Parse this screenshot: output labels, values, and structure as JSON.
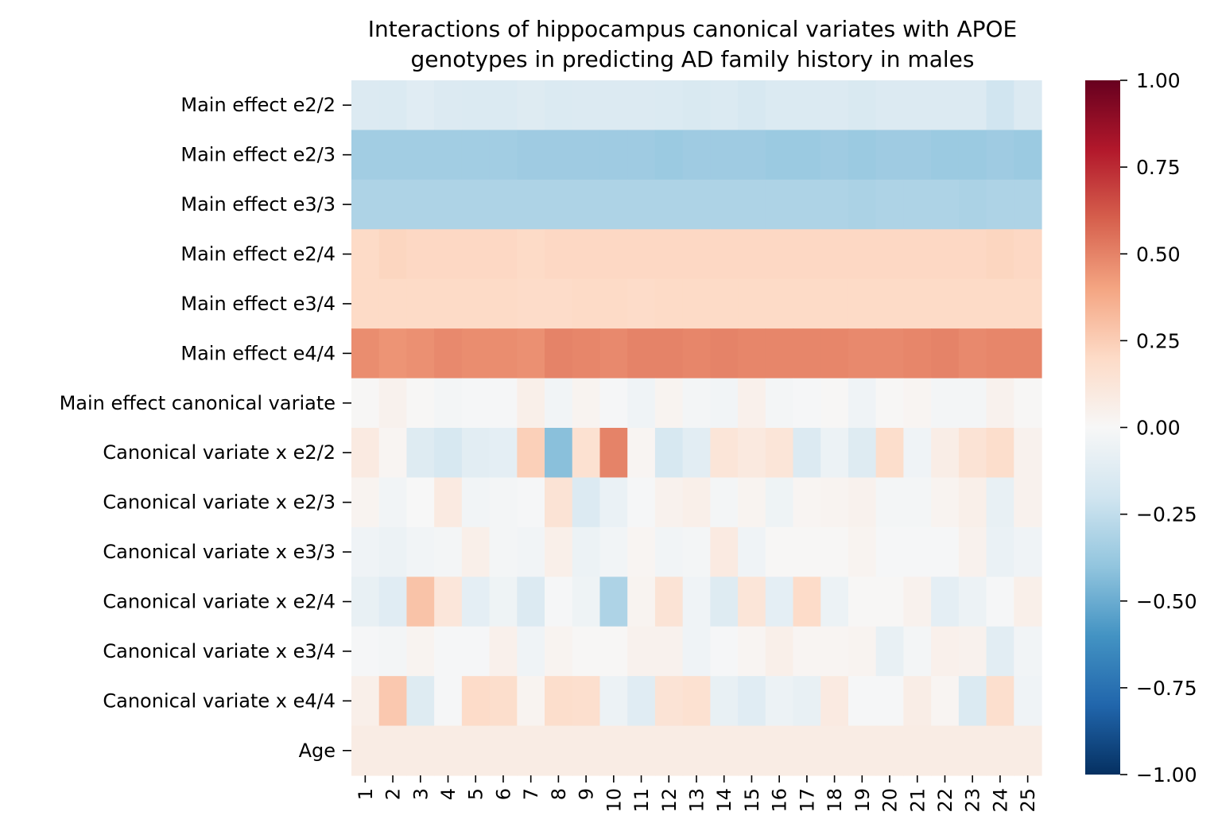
{
  "chart_data": {
    "type": "heatmap",
    "title": "Interactions of hippocampus canonical variates with APOE\ngenotypes in predicting AD family history in males",
    "xlabel": "",
    "ylabel": "",
    "x_categories": [
      "1",
      "2",
      "3",
      "4",
      "5",
      "6",
      "7",
      "8",
      "9",
      "10",
      "11",
      "12",
      "13",
      "14",
      "15",
      "16",
      "17",
      "18",
      "19",
      "20",
      "21",
      "22",
      "23",
      "24",
      "25"
    ],
    "y_categories": [
      "Main effect e2/2",
      "Main effect e2/3",
      "Main effect e3/3",
      "Main effect e2/4",
      "Main effect e3/4",
      "Main effect e4/4",
      "Main effect canonical variate",
      "Canonical variate x e2/2",
      "Canonical variate x e2/3",
      "Canonical variate x e3/3",
      "Canonical variate x e2/4",
      "Canonical variate x e3/4",
      "Canonical variate x e4/4",
      "Age"
    ],
    "values": [
      [
        -0.14,
        -0.15,
        -0.12,
        -0.14,
        -0.15,
        -0.15,
        -0.13,
        -0.15,
        -0.14,
        -0.14,
        -0.14,
        -0.15,
        -0.16,
        -0.15,
        -0.17,
        -0.15,
        -0.15,
        -0.14,
        -0.16,
        -0.14,
        -0.14,
        -0.14,
        -0.14,
        -0.2,
        -0.14
      ],
      [
        -0.35,
        -0.35,
        -0.35,
        -0.35,
        -0.35,
        -0.35,
        -0.36,
        -0.36,
        -0.36,
        -0.36,
        -0.36,
        -0.37,
        -0.36,
        -0.36,
        -0.36,
        -0.37,
        -0.37,
        -0.36,
        -0.37,
        -0.36,
        -0.36,
        -0.37,
        -0.37,
        -0.36,
        -0.37
      ],
      [
        -0.31,
        -0.31,
        -0.31,
        -0.31,
        -0.31,
        -0.31,
        -0.31,
        -0.31,
        -0.31,
        -0.31,
        -0.31,
        -0.31,
        -0.31,
        -0.31,
        -0.31,
        -0.31,
        -0.31,
        -0.31,
        -0.32,
        -0.31,
        -0.31,
        -0.31,
        -0.32,
        -0.31,
        -0.31
      ],
      [
        0.2,
        0.22,
        0.21,
        0.21,
        0.21,
        0.21,
        0.2,
        0.21,
        0.21,
        0.21,
        0.21,
        0.21,
        0.21,
        0.21,
        0.21,
        0.21,
        0.21,
        0.21,
        0.21,
        0.21,
        0.21,
        0.21,
        0.21,
        0.22,
        0.21
      ],
      [
        0.2,
        0.2,
        0.2,
        0.2,
        0.2,
        0.2,
        0.19,
        0.19,
        0.2,
        0.2,
        0.19,
        0.2,
        0.2,
        0.2,
        0.2,
        0.2,
        0.2,
        0.2,
        0.2,
        0.2,
        0.2,
        0.2,
        0.2,
        0.2,
        0.2
      ],
      [
        0.47,
        0.45,
        0.46,
        0.48,
        0.47,
        0.47,
        0.46,
        0.5,
        0.49,
        0.48,
        0.5,
        0.5,
        0.49,
        0.5,
        0.49,
        0.49,
        0.49,
        0.49,
        0.48,
        0.48,
        0.49,
        0.5,
        0.48,
        0.49,
        0.49
      ],
      [
        0.01,
        0.04,
        0.01,
        -0.02,
        -0.01,
        -0.01,
        0.06,
        -0.03,
        0.03,
        -0.01,
        -0.04,
        0.03,
        -0.02,
        -0.03,
        0.05,
        -0.02,
        -0.01,
        0.01,
        -0.04,
        0.01,
        0.02,
        -0.02,
        -0.02,
        0.04,
        0.01
      ],
      [
        0.09,
        0.02,
        -0.13,
        -0.17,
        -0.11,
        -0.1,
        0.24,
        -0.42,
        0.16,
        0.5,
        0.02,
        -0.17,
        -0.11,
        0.13,
        0.1,
        0.13,
        -0.14,
        -0.06,
        -0.13,
        0.18,
        -0.04,
        0.07,
        0.14,
        0.18,
        0.04
      ],
      [
        0.03,
        -0.03,
        0.0,
        0.09,
        -0.03,
        -0.02,
        -0.01,
        0.14,
        -0.14,
        -0.07,
        -0.01,
        0.04,
        0.06,
        -0.02,
        0.03,
        -0.05,
        0.02,
        0.03,
        0.04,
        -0.02,
        -0.02,
        0.03,
        0.06,
        -0.08,
        0.04
      ],
      [
        -0.04,
        -0.06,
        -0.03,
        -0.02,
        0.06,
        -0.02,
        -0.03,
        0.06,
        -0.06,
        -0.03,
        0.02,
        -0.03,
        -0.02,
        0.09,
        -0.04,
        0.01,
        0.01,
        0.01,
        0.03,
        -0.01,
        -0.01,
        -0.01,
        0.04,
        -0.07,
        -0.04
      ],
      [
        -0.08,
        -0.12,
        0.29,
        0.12,
        -0.1,
        -0.05,
        -0.14,
        -0.01,
        -0.05,
        -0.31,
        0.03,
        0.14,
        -0.04,
        -0.13,
        0.13,
        -0.1,
        0.19,
        -0.06,
        0.01,
        0.01,
        0.04,
        -0.1,
        -0.06,
        -0.01,
        0.06
      ],
      [
        -0.01,
        -0.02,
        0.03,
        -0.01,
        -0.01,
        0.05,
        -0.04,
        0.03,
        0.01,
        0.01,
        0.04,
        0.04,
        -0.04,
        -0.01,
        0.02,
        0.06,
        0.02,
        0.02,
        0.03,
        -0.08,
        -0.02,
        0.05,
        0.04,
        -0.11,
        -0.03
      ],
      [
        0.06,
        0.27,
        -0.13,
        -0.01,
        0.19,
        0.18,
        0.03,
        0.18,
        0.17,
        -0.06,
        -0.12,
        0.14,
        0.16,
        -0.08,
        -0.12,
        -0.06,
        -0.08,
        0.09,
        -0.01,
        -0.01,
        0.07,
        0.02,
        -0.15,
        0.17,
        -0.04
      ],
      [
        0.08,
        0.08,
        0.08,
        0.08,
        0.08,
        0.08,
        0.08,
        0.08,
        0.08,
        0.08,
        0.08,
        0.08,
        0.08,
        0.08,
        0.08,
        0.08,
        0.08,
        0.08,
        0.08,
        0.08,
        0.08,
        0.08,
        0.08,
        0.08,
        0.08
      ]
    ],
    "vmin": -1.0,
    "vmax": 1.0,
    "colormap": "RdBu_r",
    "colormap_stops": [
      "#053061",
      "#2166ac",
      "#4393c3",
      "#92c5de",
      "#d1e5f0",
      "#f7f7f7",
      "#fddbc7",
      "#f4a582",
      "#d6604d",
      "#b2182b",
      "#67001f"
    ],
    "colorbar_ticks": [
      1.0,
      0.75,
      0.5,
      0.25,
      0.0,
      -0.25,
      -0.5,
      -0.75,
      -1.0
    ],
    "colorbar_tick_labels": [
      "1.00",
      "0.75",
      "0.50",
      "0.25",
      "0.00",
      "−0.25",
      "−0.50",
      "−0.75",
      "−1.00"
    ],
    "grid": false
  }
}
